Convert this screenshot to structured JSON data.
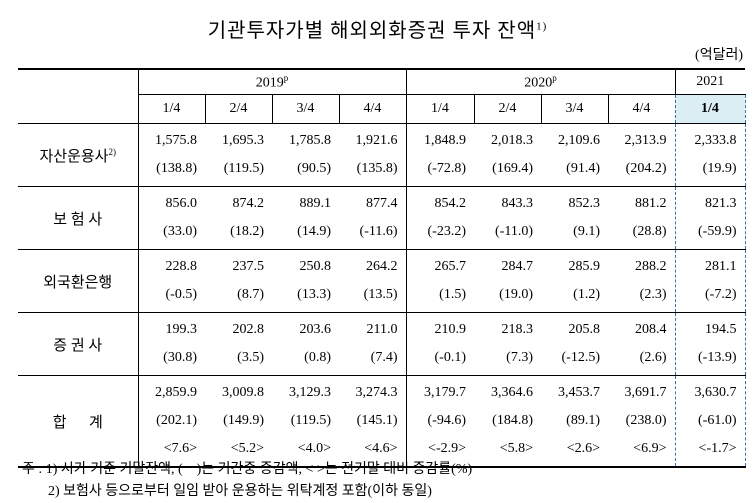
{
  "title": "기관투자가별 해외외화증권 투자 잔액",
  "title_note": "1)",
  "unit": "(억달러)",
  "header": {
    "years": [
      {
        "label": "2019",
        "mark": "p"
      },
      {
        "label": "2020",
        "mark": "p"
      },
      {
        "label": "2021"
      }
    ],
    "quarters": [
      "1/4",
      "2/4",
      "3/4",
      "4/4",
      "1/4",
      "2/4",
      "3/4",
      "4/4",
      "1/4"
    ]
  },
  "rows": [
    {
      "label": "자산운용사",
      "note": "2)",
      "lines": [
        [
          "1,575.8",
          "1,695.3",
          "1,785.8",
          "1,921.6",
          "1,848.9",
          "2,018.3",
          "2,109.6",
          "2,313.9",
          "2,333.8"
        ],
        [
          "(138.8)",
          "(119.5)",
          "(90.5)",
          "(135.8)",
          "(-72.8)",
          "(169.4)",
          "(91.4)",
          "(204.2)",
          "(19.9)"
        ]
      ]
    },
    {
      "label": "보 험 사",
      "lines": [
        [
          "856.0",
          "874.2",
          "889.1",
          "877.4",
          "854.2",
          "843.3",
          "852.3",
          "881.2",
          "821.3"
        ],
        [
          "(33.0)",
          "(18.2)",
          "(14.9)",
          "(-11.6)",
          "(-23.2)",
          "(-11.0)",
          "(9.1)",
          "(28.8)",
          "(-59.9)"
        ]
      ]
    },
    {
      "label": "외국환은행",
      "lines": [
        [
          "228.8",
          "237.5",
          "250.8",
          "264.2",
          "265.7",
          "284.7",
          "285.9",
          "288.2",
          "281.1"
        ],
        [
          "(-0.5)",
          "(8.7)",
          "(13.3)",
          "(13.5)",
          "(1.5)",
          "(19.0)",
          "(1.2)",
          "(2.3)",
          "(-7.2)"
        ]
      ]
    },
    {
      "label": "증 권 사",
      "lines": [
        [
          "199.3",
          "202.8",
          "203.6",
          "211.0",
          "210.9",
          "218.3",
          "205.8",
          "208.4",
          "194.5"
        ],
        [
          "(30.8)",
          "(3.5)",
          "(0.8)",
          "(7.4)",
          "(-0.1)",
          "(7.3)",
          "(-12.5)",
          "(2.6)",
          "(-13.9)"
        ]
      ]
    },
    {
      "label": "합      계",
      "lines": [
        [
          "2,859.9",
          "3,009.8",
          "3,129.3",
          "3,274.3",
          "3,179.7",
          "3,364.6",
          "3,453.7",
          "3,691.7",
          "3,630.7"
        ],
        [
          "(202.1)",
          "(149.9)",
          "(119.5)",
          "(145.1)",
          "(-94.6)",
          "(184.8)",
          "(89.1)",
          "(238.0)",
          "(-61.0)"
        ],
        [
          "<7.6>",
          "<5.2>",
          "<4.0>",
          "<4.6>",
          "<-2.9>",
          "<5.8>",
          "<2.6>",
          "<6.9>",
          "<-1.7>"
        ]
      ]
    }
  ],
  "notes": [
    "주 : 1) 시가 기준 기말잔액, (    )는 기간중 증감액, < >는 전기말 대비 증감률(%)",
    "2) 보험사 등으로부터 일임 받아 운용하는 위탁계정 포함(이하 동일)"
  ]
}
